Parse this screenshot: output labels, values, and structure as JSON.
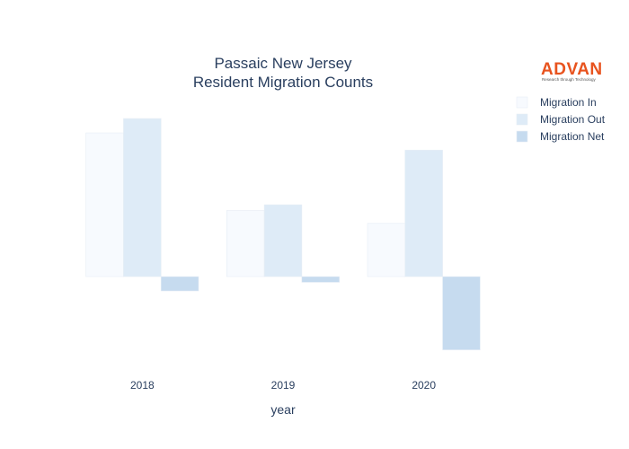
{
  "chart_data": {
    "type": "bar",
    "title": [
      "Passaic New Jersey",
      "Resident Migration Counts"
    ],
    "xlabel": "year",
    "ylabel": "",
    "categories": [
      "2018",
      "2019",
      "2020"
    ],
    "series": [
      {
        "name": "Migration In",
        "values": [
          1000,
          460,
          370
        ],
        "color": "#f7fafe"
      },
      {
        "name": "Migration Out",
        "values": [
          1100,
          500,
          880
        ],
        "color": "#deebf7"
      },
      {
        "name": "Migration Net",
        "values": [
          -100,
          -40,
          -510
        ],
        "color": "#c6dbef"
      }
    ],
    "ylim": [
      -600,
      1200
    ],
    "grid": false,
    "legend_position": "top-right",
    "logo": {
      "text": "ADVAN",
      "subtext": "Research through Technology"
    }
  }
}
